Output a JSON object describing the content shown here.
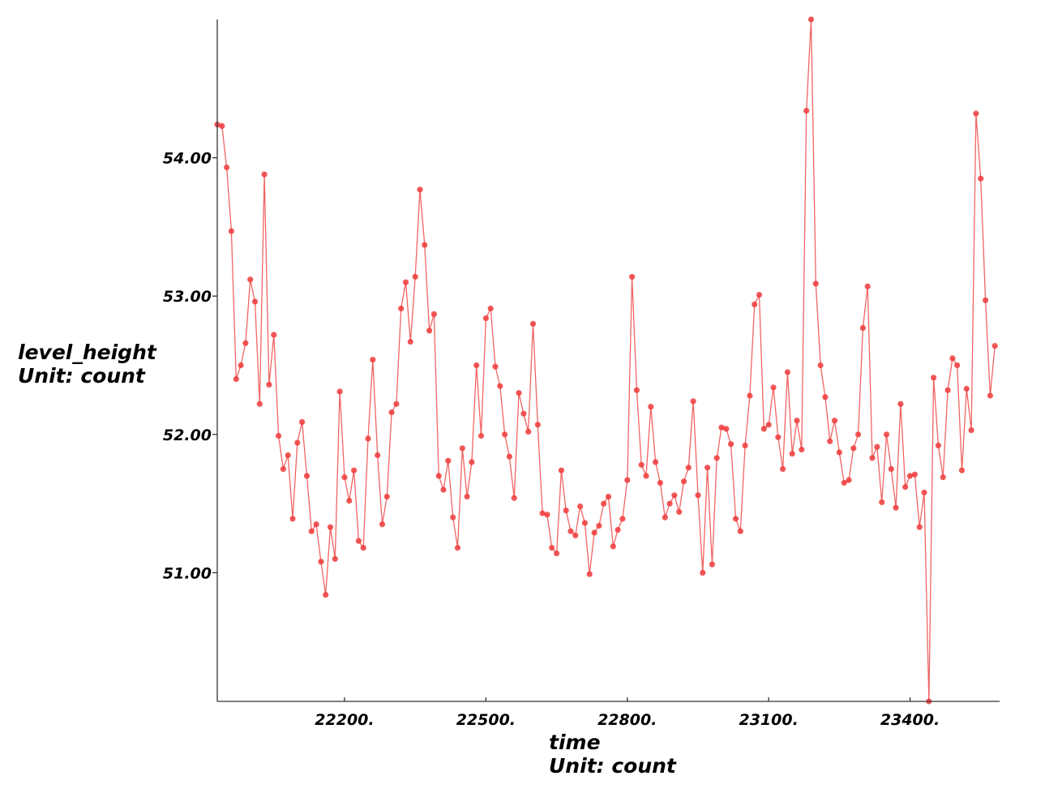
{
  "chart_data": {
    "type": "line",
    "xlabel": "time",
    "xunit": "Unit: count",
    "ylabel": "level_height",
    "yunit": "Unit: count",
    "xlim": [
      21930,
      23590
    ],
    "ylim": [
      50.07,
      55.0
    ],
    "x_ticks": [
      22200,
      22500,
      22800,
      23100,
      23400
    ],
    "x_tick_labels": [
      "22200.",
      "22500.",
      "22800.",
      "23100.",
      "23400."
    ],
    "y_ticks": [
      51,
      52,
      53,
      54
    ],
    "y_tick_labels": [
      "51.00",
      "52.00",
      "53.00",
      "54.00"
    ],
    "grid": false,
    "legend": "none",
    "line_color": "#f26464",
    "marker_color": "#ee3b3b",
    "x_start": 21930,
    "x_step": 10,
    "series": [
      {
        "values": [
          54.24,
          54.23,
          53.93,
          53.47,
          52.4,
          52.5,
          52.66,
          53.12,
          52.96,
          52.22,
          53.88,
          52.36,
          52.72,
          51.99,
          51.75,
          51.85,
          51.39,
          51.94,
          52.09,
          51.7,
          51.3,
          51.35,
          51.08,
          50.84,
          51.33,
          51.1,
          52.31,
          51.69,
          51.52,
          51.74,
          51.23,
          51.18,
          51.97,
          52.54,
          51.85,
          51.35,
          51.55,
          52.16,
          52.22,
          52.91,
          53.1,
          52.67,
          53.14,
          53.77,
          53.37,
          52.75,
          52.87,
          51.7,
          51.6,
          51.81,
          51.4,
          51.18,
          51.9,
          51.55,
          51.8,
          52.5,
          51.99,
          52.84,
          52.91,
          52.49,
          52.35,
          52.0,
          51.84,
          51.54,
          52.3,
          52.15,
          52.02,
          52.8,
          52.07,
          51.43,
          51.42,
          51.18,
          51.14,
          51.74,
          51.45,
          51.3,
          51.27,
          51.48,
          51.36,
          50.99,
          51.29,
          51.34,
          51.5,
          51.55,
          51.19,
          51.31,
          51.39,
          51.67,
          53.14,
          52.32,
          51.78,
          51.7,
          52.2,
          51.8,
          51.65,
          51.4,
          51.5,
          51.56,
          51.44,
          51.66,
          51.76,
          52.24,
          51.56,
          51.0,
          51.76,
          51.06,
          51.83,
          52.05,
          52.04,
          51.93,
          51.39,
          51.3,
          51.92,
          52.28,
          52.94,
          53.01,
          52.04,
          52.07,
          52.34,
          51.98,
          51.75,
          52.45,
          51.86,
          52.1,
          51.89,
          54.34,
          55.0,
          53.09,
          52.5,
          52.27,
          51.95,
          52.1,
          51.87,
          51.65,
          51.67,
          51.9,
          52.0,
          52.77,
          53.07,
          51.83,
          51.91,
          51.51,
          52.0,
          51.75,
          51.47,
          52.22,
          51.62,
          51.7,
          51.71,
          51.33,
          51.58,
          50.07,
          52.41,
          51.92,
          51.69,
          52.32,
          52.55,
          52.5,
          51.74,
          52.33,
          52.03,
          54.32,
          53.85,
          52.97,
          52.28,
          52.64
        ]
      }
    ]
  }
}
